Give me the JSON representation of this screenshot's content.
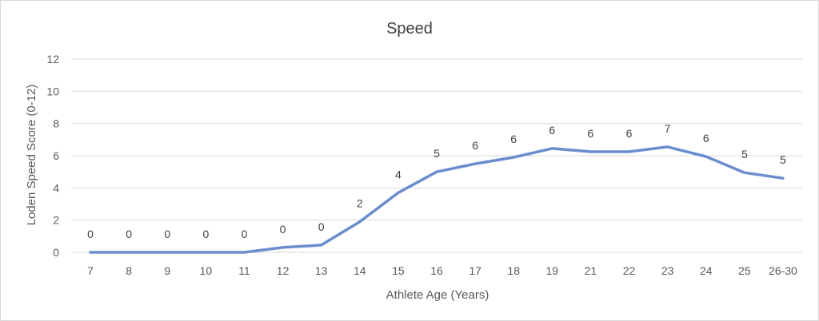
{
  "chart_data": {
    "type": "line",
    "title": "Speed",
    "xlabel": "Athlete Age (Years)",
    "ylabel": "Loden Speed Score (0-12)",
    "ylim": [
      0,
      12
    ],
    "yticks": [
      0,
      2,
      4,
      6,
      8,
      10,
      12
    ],
    "grid": true,
    "categories": [
      "7",
      "8",
      "9",
      "10",
      "11",
      "12",
      "13",
      "14",
      "15",
      "16",
      "17",
      "18",
      "19",
      "21",
      "22",
      "23",
      "24",
      "25",
      "26-30"
    ],
    "series": [
      {
        "values": [
          0,
          0,
          0,
          0,
          0,
          0.3,
          0.45,
          1.9,
          3.7,
          5.0,
          5.5,
          5.9,
          6.45,
          6.25,
          6.25,
          6.55,
          5.95,
          4.95,
          4.6
        ],
        "data_labels": [
          "0",
          "0",
          "0",
          "0",
          "0",
          "0",
          "0",
          "2",
          "4",
          "5",
          "6",
          "6",
          "6",
          "6",
          "6",
          "7",
          "6",
          "5",
          "5"
        ],
        "color": "#6a8dce"
      }
    ]
  }
}
